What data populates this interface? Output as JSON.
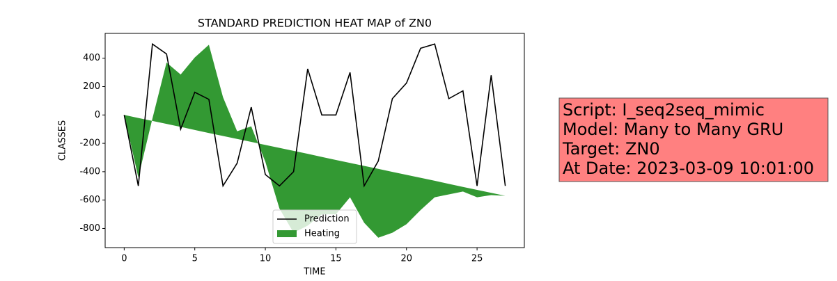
{
  "chart_data": {
    "type": "line-area",
    "title": "STANDARD PREDICTION HEAT MAP of ZN0",
    "xlabel": "TIME",
    "ylabel": "CLASSES",
    "x": [
      0,
      1,
      2,
      3,
      4,
      5,
      6,
      7,
      8,
      9,
      10,
      11,
      12,
      13,
      14,
      15,
      16,
      17,
      18,
      19,
      20,
      21,
      22,
      23,
      24,
      25,
      26,
      27
    ],
    "series": [
      {
        "name": "Prediction",
        "kind": "line",
        "color": "#000000",
        "values": [
          0,
          -500,
          500,
          430,
          -100,
          160,
          110,
          -500,
          -340,
          55,
          -420,
          -500,
          -400,
          325,
          0,
          0,
          300,
          -500,
          -325,
          115,
          225,
          470,
          500,
          115,
          170,
          -500,
          280,
          -500
        ]
      },
      {
        "name": "Heating",
        "kind": "area",
        "color": "#339933",
        "values": [
          0,
          -440,
          -25,
          370,
          285,
          405,
          495,
          125,
          -115,
          -80,
          -330,
          -660,
          -830,
          -780,
          -700,
          -700,
          -580,
          -760,
          -865,
          -830,
          -770,
          -670,
          -580,
          -560,
          -540,
          -580,
          -565,
          -570
        ],
        "baseline": [
          0,
          -21,
          -42,
          -63,
          -84,
          -106,
          -127,
          -148,
          -169,
          -190,
          -211,
          -232,
          -253,
          -274,
          -296,
          -317,
          -338,
          -359,
          -380,
          -401,
          -422,
          -443,
          -464,
          -486,
          -507,
          -528,
          -549,
          -570
        ]
      }
    ],
    "xlim": [
      -1.35,
      28.35
    ],
    "xticks": [
      0,
      5,
      10,
      15,
      20,
      25
    ],
    "ylim": [
      -935,
      575
    ],
    "yticks": [
      -800,
      -600,
      -400,
      -200,
      0,
      200,
      400
    ],
    "legend": "lower center",
    "annotation": {
      "lines": [
        "Script: I_seq2seq_mimic",
        "Model: Many to Many GRU",
        "Target: ZN0",
        "At Date: 2023-03-09 10:01:00"
      ],
      "color": "#ff8080"
    }
  }
}
